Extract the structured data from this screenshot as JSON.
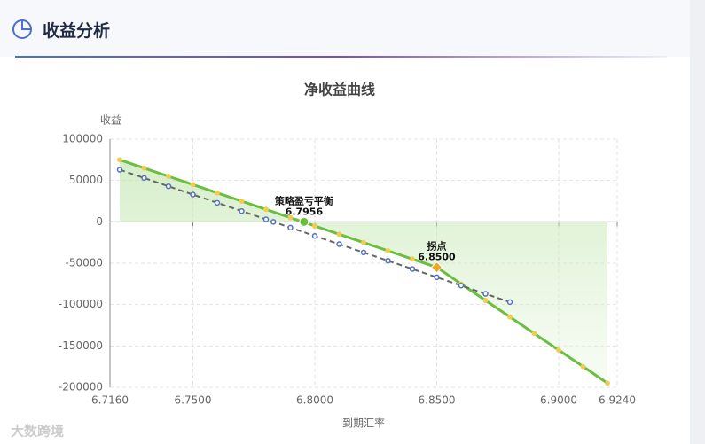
{
  "header": {
    "title": "收益分析"
  },
  "watermark": "大数跨境",
  "chart_data": {
    "type": "line",
    "title": "净收益曲线",
    "y_label": "收益",
    "x_label": "到期汇率",
    "xlim": [
      6.716,
      6.924
    ],
    "xticks": [
      {
        "value": 6.716,
        "label": "6.7160"
      },
      {
        "value": 6.75,
        "label": "6.7500"
      },
      {
        "value": 6.8,
        "label": "6.8000"
      },
      {
        "value": 6.85,
        "label": "6.8500"
      },
      {
        "value": 6.9,
        "label": "6.9000"
      },
      {
        "value": 6.924,
        "label": "6.9240"
      }
    ],
    "ylim": [
      -200000,
      100000
    ],
    "yticks": [
      100000,
      50000,
      0,
      -50000,
      -100000,
      -150000,
      -200000
    ],
    "grid": true,
    "series": [
      {
        "color": "#6abf3f",
        "marker_color": "#f0cc52",
        "dashed": false,
        "area": true,
        "x": [
          6.72,
          6.73,
          6.74,
          6.75,
          6.76,
          6.77,
          6.78,
          6.79,
          6.8,
          6.81,
          6.82,
          6.83,
          6.84,
          6.85,
          6.86,
          6.87,
          6.88,
          6.89,
          6.9,
          6.91,
          6.92
        ],
        "values": [
          75000,
          65000,
          55000,
          45000,
          35000,
          25000,
          15000,
          5000,
          -5000,
          -15000,
          -25000,
          -35000,
          -45000,
          -55000,
          -75000,
          -95000,
          -115000,
          -135000,
          -155000,
          -175000,
          -195000
        ]
      },
      {
        "color": "#666666",
        "marker_color": "#5470c6",
        "dashed": true,
        "area": false,
        "x": [
          6.72,
          6.73,
          6.74,
          6.75,
          6.76,
          6.77,
          6.78,
          6.783,
          6.79,
          6.8,
          6.81,
          6.82,
          6.83,
          6.84,
          6.85,
          6.86,
          6.87,
          6.88
        ],
        "values": [
          63000,
          53000,
          43000,
          33000,
          23000,
          13000,
          3000,
          0,
          -7000,
          -17000,
          -27000,
          -37000,
          -47000,
          -57000,
          -67000,
          -77000,
          -87000,
          -97000
        ]
      }
    ],
    "annotations": [
      {
        "text": "策略盈亏平衡",
        "label": "6.7956",
        "x": 6.7956,
        "y": 0,
        "color": "#67c23a",
        "shape": "circle"
      },
      {
        "text": "拐点",
        "label": "6.8500",
        "x": 6.85,
        "y": -55000,
        "color": "#f5a623",
        "shape": "diamond"
      }
    ]
  }
}
